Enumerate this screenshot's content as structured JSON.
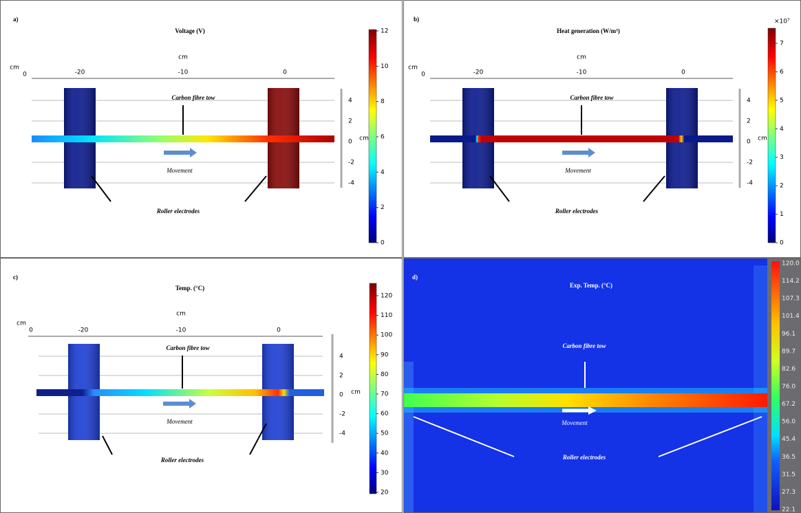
{
  "panels": [
    {
      "label": "a)",
      "title": "Voltage (V)",
      "x_unit": "cm",
      "x_ticks": [
        "-20",
        "-10",
        "0"
      ],
      "corner_unit": "cm",
      "corner_tick": "0",
      "y_unit": "cm",
      "y_ticks": [
        "4",
        "2",
        "0",
        "-2",
        "-4"
      ],
      "colorbar_ticks": [
        "0",
        "2",
        "4",
        "6",
        "8",
        "10",
        "12"
      ],
      "annotations": {
        "tow": "Carbon fibre tow",
        "movement": "Movement",
        "rollers": "Roller electrodes"
      }
    },
    {
      "label": "b)",
      "title": "Heat generation (W/m³)",
      "x_unit": "cm",
      "x_ticks": [
        "-20",
        "-10",
        "0"
      ],
      "corner_unit": "cm",
      "corner_tick": "0",
      "y_unit": "cm",
      "y_ticks": [
        "4",
        "2",
        "0",
        "-2",
        "-4"
      ],
      "colorbar_exponent": "×10⁷",
      "colorbar_ticks": [
        "0",
        "1",
        "2",
        "3",
        "4",
        "5",
        "6",
        "7"
      ],
      "annotations": {
        "tow": "Carbon fibre tow",
        "movement": "Movement",
        "rollers": "Roller electrodes"
      }
    },
    {
      "label": "c)",
      "title": "Temp. (°C)",
      "x_unit": "cm",
      "x_ticks": [
        "-20",
        "-10",
        "0"
      ],
      "corner_unit": "cm",
      "corner_tick": "0",
      "y_unit": "cm",
      "y_ticks": [
        "4",
        "2",
        "0",
        "-2",
        "-4"
      ],
      "colorbar_ticks": [
        "20",
        "30",
        "40",
        "50",
        "60",
        "70",
        "80",
        "90",
        "100",
        "110",
        "120"
      ],
      "annotations": {
        "tow": "Carbon fibre tow",
        "movement": "Movement",
        "rollers": "Roller electrodes"
      }
    },
    {
      "label": "d)",
      "title": "Exp. Temp. (°C)",
      "colorbar_ticks": [
        "120.0",
        "114.2",
        "107.3",
        "101.4",
        "96.1",
        "89.7",
        "82.6",
        "76.0",
        "67.2",
        "56.0",
        "45.4",
        "36.5",
        "31.5",
        "27.3",
        "22.1"
      ],
      "annotations": {
        "tow": "Carbon fibre tow",
        "movement": "Movement",
        "rollers": "Roller electrodes"
      }
    }
  ]
}
